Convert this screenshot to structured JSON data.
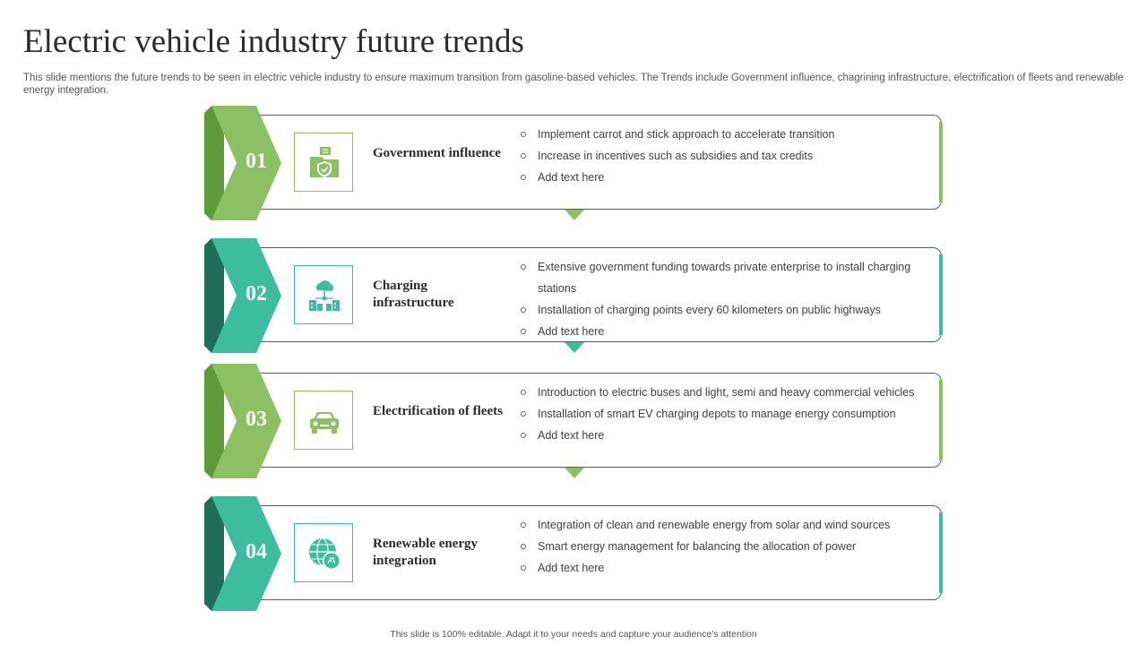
{
  "title": "Electric vehicle industry future trends",
  "subtitle": "This slide mentions the future trends to be seen in electric vehicle industry to ensure maximum transition from gasoline-based vehicles.  The Trends include Government influence, chagrining infrastructure, electrification of fleets and renewable energy integration.",
  "footer": "This slide is 100% editable.  Adapt it to your needs and capture your audience's attention",
  "colors": {
    "green": "#8cc063",
    "green_dark": "#5e9a3c",
    "teal": "#3ebc9e",
    "teal_dark": "#1f6e58"
  },
  "trends": [
    {
      "number": "01",
      "heading": "Government influence",
      "icon": "government-folder-shield-icon",
      "theme": "green",
      "bullets": [
        "Implement carrot and stick approach to accelerate transition",
        "Increase in incentives such as subsidies and tax credits",
        "Add text here"
      ]
    },
    {
      "number": "02",
      "heading": "Charging infrastructure",
      "icon": "cloud-buildings-icon",
      "theme": "teal",
      "bullets": [
        "Extensive government funding towards private enterprise to install charging stations",
        "Installation of charging points every 60 kilometers on public highways",
        "Add text here"
      ]
    },
    {
      "number": "03",
      "heading": "Electrification of fleets",
      "icon": "car-icon",
      "theme": "green",
      "bullets": [
        "Introduction to electric buses and light, semi and heavy commercial vehicles",
        "Installation of smart EV charging depots to manage energy consumption",
        "Add text here"
      ]
    },
    {
      "number": "04",
      "heading": "Renewable energy integration",
      "icon": "globe-recycle-icon",
      "theme": "teal",
      "bullets": [
        "Integration of clean and renewable energy from solar and wind sources",
        "Smart energy management for balancing the allocation of power",
        "Add text here"
      ]
    }
  ]
}
